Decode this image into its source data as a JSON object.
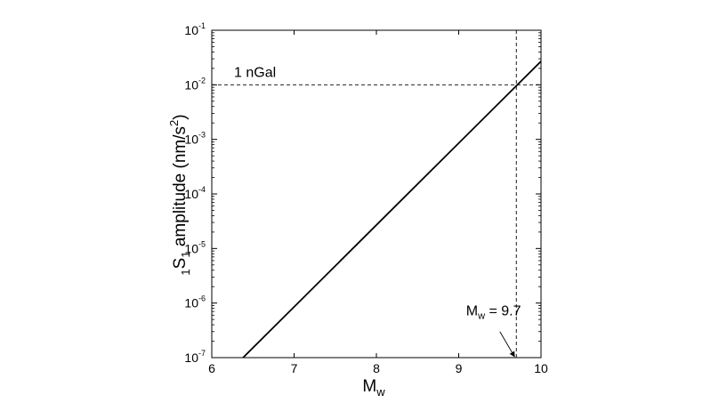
{
  "chart_data": {
    "type": "line",
    "title": "",
    "xlabel": "M",
    "xlabel_sub": "w",
    "ylabel_pre_sub": "1",
    "ylabel_main": "S",
    "ylabel_sub": "1",
    "ylabel_text": " amplitude (nm/s",
    "ylabel_sup": "2",
    "ylabel_close": ")",
    "xlim": [
      6,
      10
    ],
    "ylim": [
      1e-07,
      0.1
    ],
    "yscale": "log",
    "grid": false,
    "x_ticks": [
      "6",
      "7",
      "8",
      "9",
      "10"
    ],
    "y_ticks": [
      {
        "base": "10",
        "exp": "-7",
        "value": 1e-07
      },
      {
        "base": "10",
        "exp": "-6",
        "value": 1e-06
      },
      {
        "base": "10",
        "exp": "-5",
        "value": 1e-05
      },
      {
        "base": "10",
        "exp": "-4",
        "value": 0.0001
      },
      {
        "base": "10",
        "exp": "-3",
        "value": 0.001
      },
      {
        "base": "10",
        "exp": "-2",
        "value": 0.01
      },
      {
        "base": "10",
        "exp": "-1",
        "value": 0.1
      }
    ],
    "series": [
      {
        "line_style": "solid",
        "color": "#000000",
        "x": [
          6.38,
          10.0
        ],
        "y": [
          1e-07,
          0.027
        ]
      }
    ],
    "reference_lines": [
      {
        "orientation": "horizontal",
        "value": 0.01,
        "style": "dashed",
        "label": "1 nGal"
      },
      {
        "orientation": "vertical",
        "value": 9.7,
        "style": "dashed"
      }
    ],
    "annotations": [
      {
        "text_main": "M",
        "text_sub": "w",
        "text_rest": " = 9.7",
        "arrow_to": {
          "x": 9.7,
          "y": 1e-07
        },
        "arrow_from": {
          "x": 9.5,
          "y": 3e-07
        }
      }
    ]
  }
}
